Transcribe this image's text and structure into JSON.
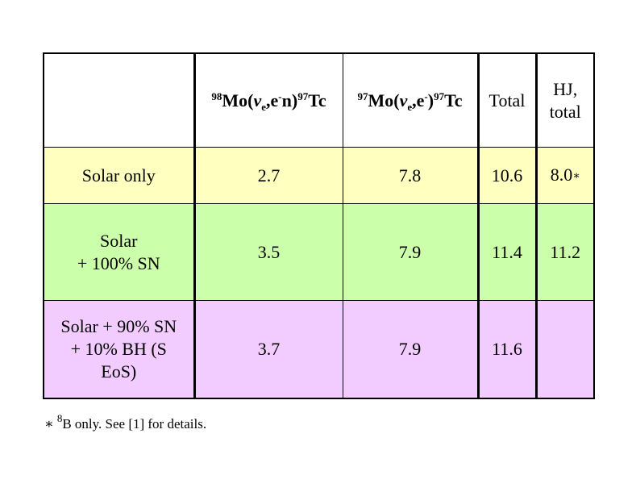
{
  "table": {
    "header": [
      [
        {
          "text": "98",
          "pos": "sup"
        },
        {
          "text": "Mo("
        },
        {
          "text": "ν",
          "pos": "i"
        },
        {
          "text": "e",
          "pos": "sub"
        },
        {
          "text": ",e"
        },
        {
          "text": "-",
          "pos": "sup"
        },
        {
          "text": "n)"
        },
        {
          "text": "97",
          "pos": "sup"
        },
        {
          "text": "Tc"
        }
      ],
      [
        {
          "text": "97",
          "pos": "sup"
        },
        {
          "text": "Mo("
        },
        {
          "text": "ν",
          "pos": "i"
        },
        {
          "text": "e",
          "pos": "sub"
        },
        {
          "text": ",e"
        },
        {
          "text": "-",
          "pos": "sup"
        },
        {
          "text": ")"
        },
        {
          "text": "97",
          "pos": "sup"
        },
        {
          "text": "Tc"
        }
      ],
      "Total",
      [
        "HJ,",
        "total"
      ]
    ],
    "rows": [
      {
        "label": "Solar only",
        "cells": [
          "2.7",
          "7.8",
          "10.6",
          [
            {
              "text": "8.0"
            },
            {
              "text": "∗",
              "pos": "small"
            }
          ]
        ]
      },
      {
        "label": [
          "Solar",
          "+ 100% SN"
        ],
        "cells": [
          "3.5",
          "7.9",
          "11.4",
          "11.2"
        ]
      },
      {
        "label": [
          "Solar + 90% SN",
          "+ 10% BH (S",
          "EoS)"
        ],
        "cells": [
          "3.7",
          "7.9",
          "11.6"
        ]
      }
    ]
  },
  "footnote": [
    {
      "text": "∗ "
    },
    {
      "text": "8",
      "pos": "sup"
    },
    {
      "text": "B only. See [1] for details."
    }
  ]
}
